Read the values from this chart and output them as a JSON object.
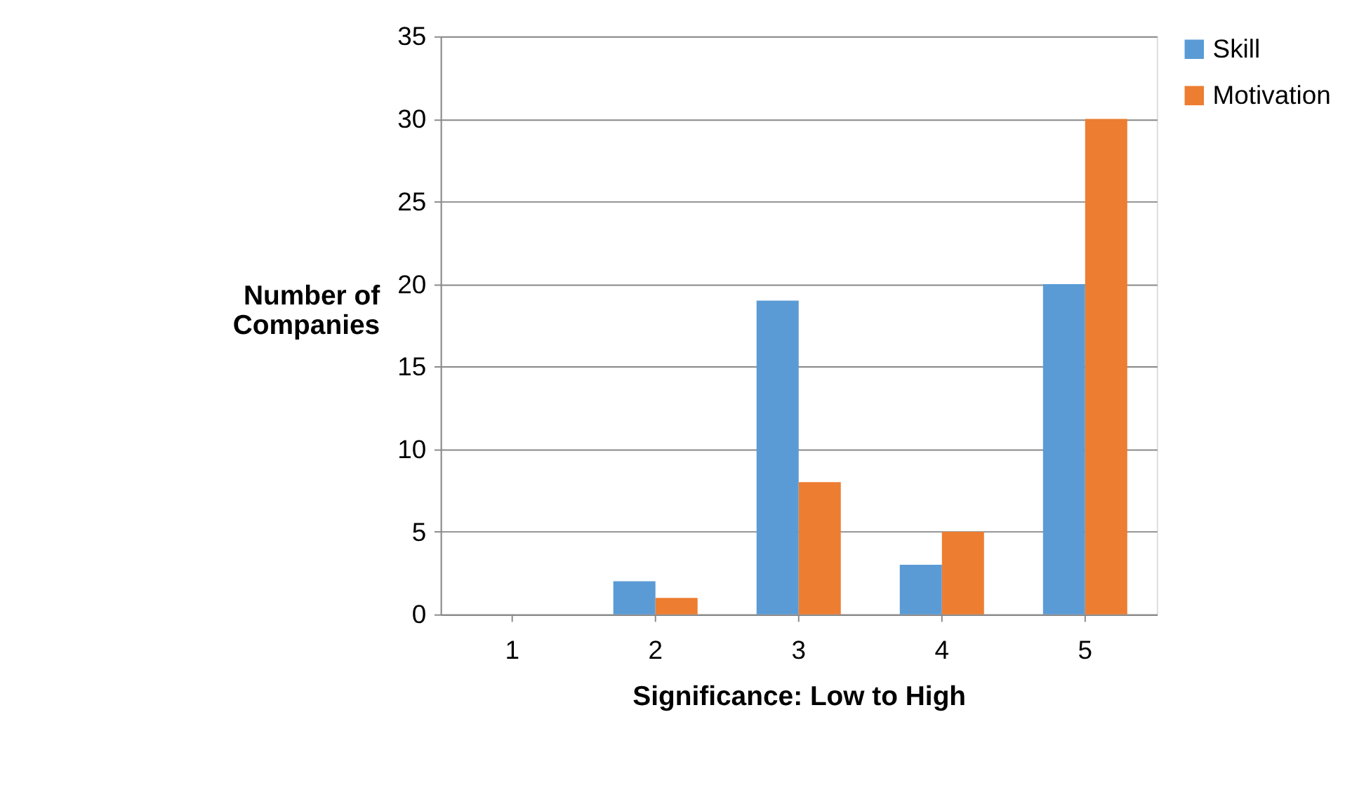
{
  "chart_data": {
    "type": "bar",
    "xlabel": "Significance: Low to High",
    "ylabel": "Number of Companies",
    "categories": [
      "1",
      "2",
      "3",
      "4",
      "5"
    ],
    "series": [
      {
        "name": "Skill",
        "color": "#5b9bd5",
        "values": [
          0,
          2,
          19,
          3,
          20
        ]
      },
      {
        "name": "Motivation",
        "color": "#ed7d31",
        "values": [
          0,
          1,
          8,
          5,
          30
        ]
      }
    ],
    "ylim": [
      0,
      35
    ],
    "yticks": [
      0,
      5,
      10,
      15,
      20,
      25,
      30,
      35
    ],
    "grid": "y",
    "legend": "right"
  }
}
